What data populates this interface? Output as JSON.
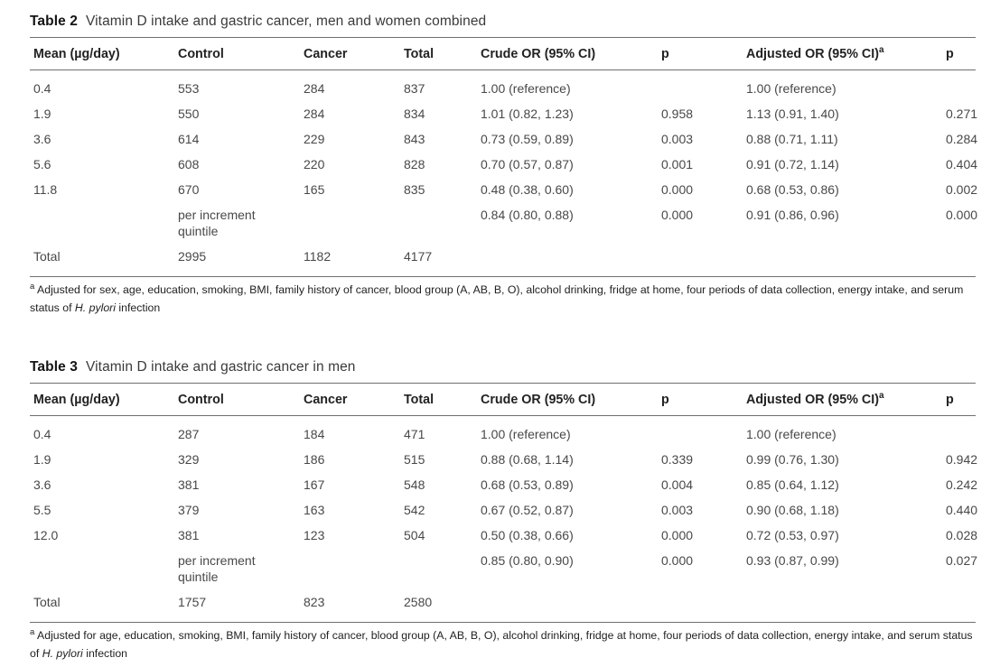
{
  "tables": [
    {
      "label": "Table 2",
      "title": "Vitamin D intake and gastric cancer, men and women combined",
      "columns": [
        "Mean (µg/day)",
        "Control",
        "Cancer",
        "Total",
        "Crude OR (95% CI)",
        "p",
        "Adjusted OR (95% CI)",
        "p"
      ],
      "header_sup": "a",
      "rows": [
        [
          "0.4",
          "553",
          "284",
          "837",
          "1.00 (reference)",
          "",
          "1.00 (reference)",
          ""
        ],
        [
          "1.9",
          "550",
          "284",
          "834",
          "1.01 (0.82, 1.23)",
          "0.958",
          "1.13 (0.91, 1.40)",
          "0.271"
        ],
        [
          "3.6",
          "614",
          "229",
          "843",
          "0.73 (0.59, 0.89)",
          "0.003",
          "0.88 (0.71, 1.11)",
          "0.284"
        ],
        [
          "5.6",
          "608",
          "220",
          "828",
          "0.70 (0.57, 0.87)",
          "0.001",
          "0.91 (0.72, 1.14)",
          "0.404"
        ],
        [
          "11.8",
          "670",
          "165",
          "835",
          "0.48 (0.38, 0.60)",
          "0.000",
          "0.68 (0.53, 0.86)",
          "0.002"
        ],
        [
          "",
          "per increment quintile",
          "",
          "",
          "0.84 (0.80, 0.88)",
          "0.000",
          "0.91 (0.86, 0.96)",
          "0.000"
        ],
        [
          "Total",
          "2995",
          "1182",
          "4177",
          "",
          "",
          "",
          ""
        ]
      ],
      "footnote": {
        "marker": "a",
        "text_before_italic": " Adjusted for sex, age, education, smoking, BMI, family history of cancer, blood group (A, AB, B, O), alcohol drinking, fridge at home, four periods of data collection, energy intake, and serum status of ",
        "italic": "H. pylori",
        "text_after_italic": " infection"
      }
    },
    {
      "label": "Table 3",
      "title": "Vitamin D intake and gastric cancer in men",
      "columns": [
        "Mean (µg/day)",
        "Control",
        "Cancer",
        "Total",
        "Crude OR (95% CI)",
        "p",
        "Adjusted OR (95% CI)",
        "p"
      ],
      "header_sup": "a",
      "rows": [
        [
          "0.4",
          "287",
          "184",
          "471",
          "1.00 (reference)",
          "",
          "1.00 (reference)",
          ""
        ],
        [
          "1.9",
          "329",
          "186",
          "515",
          "0.88 (0.68, 1.14)",
          "0.339",
          "0.99 (0.76, 1.30)",
          "0.942"
        ],
        [
          "3.6",
          "381",
          "167",
          "548",
          "0.68 (0.53, 0.89)",
          "0.004",
          "0.85 (0.64, 1.12)",
          "0.242"
        ],
        [
          "5.5",
          "379",
          "163",
          "542",
          "0.67 (0.52, 0.87)",
          "0.003",
          "0.90 (0.68, 1.18)",
          "0.440"
        ],
        [
          "12.0",
          "381",
          "123",
          "504",
          "0.50 (0.38, 0.66)",
          "0.000",
          "0.72 (0.53, 0.97)",
          "0.028"
        ],
        [
          "",
          "per increment quintile",
          "",
          "",
          "0.85 (0.80, 0.90)",
          "0.000",
          "0.93 (0.87, 0.99)",
          "0.027"
        ],
        [
          "Total",
          "1757",
          "823",
          "2580",
          "",
          "",
          "",
          ""
        ]
      ],
      "footnote": {
        "marker": "a",
        "text_before_italic": " Adjusted for age, education, smoking, BMI, family history of cancer, blood group (A, AB, B, O), alcohol drinking, fridge at home, four periods of data collection, energy intake, and serum status of ",
        "italic": "H. pylori",
        "text_after_italic": " infection"
      }
    }
  ]
}
